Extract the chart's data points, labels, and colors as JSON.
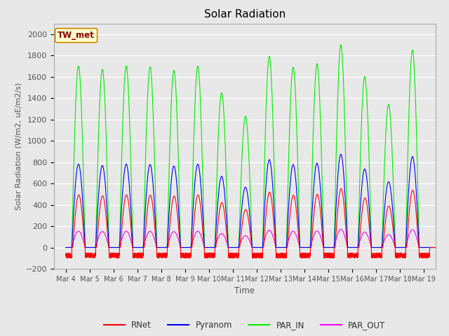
{
  "title": "Solar Radiation",
  "ylabel": "Solar Radiation (W/m2, uE/m2/s)",
  "xlabel": "Time",
  "ylim": [
    -200,
    2100
  ],
  "xlim_start": 3.5,
  "xlim_end": 19.5,
  "annotation": "TW_met",
  "legend_labels": [
    "RNet",
    "Pyranom",
    "PAR_IN",
    "PAR_OUT"
  ],
  "line_colors": {
    "RNet": "#ff0000",
    "Pyranom": "#0000ff",
    "PAR_IN": "#00ee00",
    "PAR_OUT": "#ff00ff"
  },
  "fig_bg": "#e8e8e8",
  "plot_bg": "#e8e8e8",
  "grid_color": "#ffffff",
  "tick_labels": [
    "Mar 4",
    "Mar 5",
    "Mar 6",
    "Mar 7",
    "Mar 8",
    "Mar 9",
    "Mar 10",
    "Mar 11",
    "Mar 12",
    "Mar 13",
    "Mar 14",
    "Mar 15",
    "Mar 16",
    "Mar 17",
    "Mar 18",
    "Mar 19"
  ],
  "tick_positions": [
    4,
    5,
    6,
    7,
    8,
    9,
    10,
    11,
    12,
    13,
    14,
    15,
    16,
    17,
    18,
    19
  ],
  "par_in_peaks": [
    1700,
    1670,
    1700,
    1690,
    1660,
    1700,
    1450,
    1230,
    1790,
    1690,
    1720,
    1900,
    1600,
    1340,
    1850,
    0
  ],
  "pyranom_factor": 0.46,
  "rnet_factor": 0.29,
  "par_out_factor": 0.09,
  "rnet_night": -100,
  "seed": 12
}
